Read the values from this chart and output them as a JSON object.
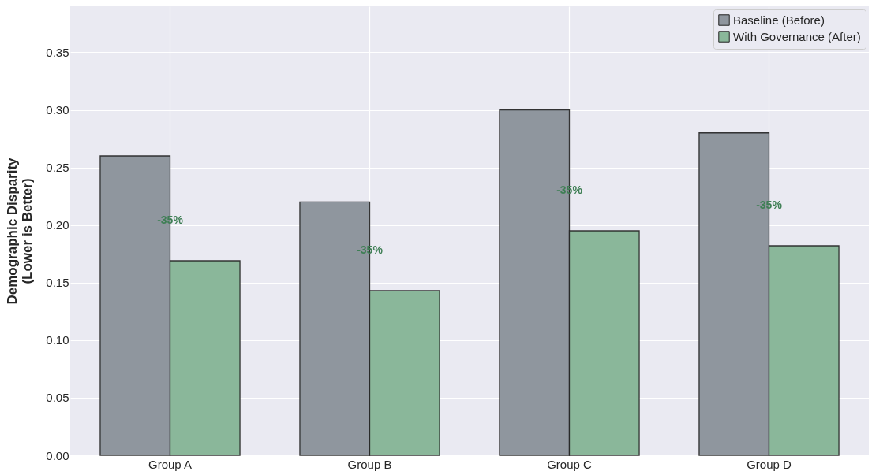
{
  "chart_data": {
    "type": "bar",
    "ylabel": "Demographic Disparity\n(Lower is Better)",
    "categories": [
      "Group A",
      "Group B",
      "Group C",
      "Group D"
    ],
    "series": [
      {
        "name": "Baseline (Before)",
        "color": "#8f969e",
        "values": [
          0.26,
          0.22,
          0.3,
          0.28
        ]
      },
      {
        "name": "With Governance (After)",
        "color": "#8ab79a",
        "values": [
          0.169,
          0.143,
          0.195,
          0.182
        ]
      }
    ],
    "ylim": [
      0,
      0.39
    ],
    "yticks": [
      {
        "value": 0,
        "label": "0.00"
      },
      0.05,
      {
        "value": 0.1,
        "label": "0.10"
      },
      0.15,
      {
        "value": 0.2,
        "label": "0.20"
      },
      0.25,
      {
        "value": 0.3,
        "label": "0.30"
      },
      0.35
    ],
    "annotations": [
      {
        "text": "-35%",
        "x": "Group A",
        "y": 0.204
      },
      {
        "text": "-35%",
        "x": "Group B",
        "y": 0.178
      },
      {
        "text": "-35%",
        "x": "Group C",
        "y": 0.23
      },
      {
        "text": "-35%",
        "x": "Group D",
        "y": 0.217
      }
    ],
    "grid": true,
    "legend": "top right"
  }
}
